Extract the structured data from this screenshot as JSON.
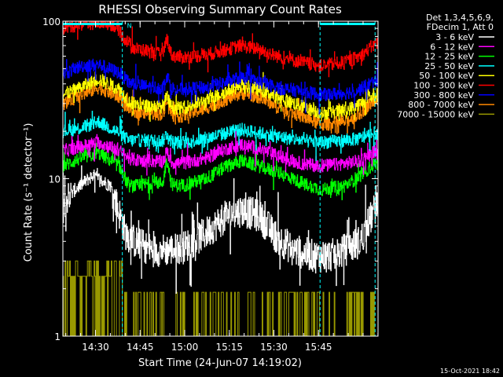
{
  "chart_data": {
    "type": "line",
    "title": "RHESSI Observing Summary Count Rates",
    "xlabel": "Start Time (24-Jun-07 14:19:02)",
    "ylabel": "Count Rate (s⁻¹ detector⁻¹)",
    "yscale": "log",
    "ylim": [
      1,
      100
    ],
    "xlim_minutes": [
      0,
      106
    ],
    "x_ticks": [
      {
        "label": "14:30",
        "minute": 10.97
      },
      {
        "label": "14:45",
        "minute": 25.97
      },
      {
        "label": "15:00",
        "minute": 40.97
      },
      {
        "label": "15:15",
        "minute": 55.97
      },
      {
        "label": "15:30",
        "minute": 70.97
      },
      {
        "label": "15:45",
        "minute": 85.97
      }
    ],
    "y_ticks": [
      {
        "label": "1",
        "value": 1
      },
      {
        "label": "10",
        "value": 10
      },
      {
        "label": "100",
        "value": 100
      }
    ],
    "legend_header": [
      "Det 1,3,4,5,6,9,",
      "FDecim 1, Att 0"
    ],
    "night_boundaries_minutes": [
      20,
      86.5,
      105
    ],
    "flag_bars": [
      {
        "start": 0,
        "end": 20,
        "value": 96,
        "marker": "N"
      },
      {
        "start": 86.5,
        "end": 105,
        "value": 96,
        "marker": ""
      }
    ],
    "series": [
      {
        "name": "3 - 6 keV",
        "color": "#ffffff",
        "anchors": [
          [
            0,
            7
          ],
          [
            4,
            8.5
          ],
          [
            10,
            10.5
          ],
          [
            16,
            9
          ],
          [
            19,
            6
          ],
          [
            21,
            4.5
          ],
          [
            24,
            4
          ],
          [
            30,
            3.5
          ],
          [
            40,
            3.6
          ],
          [
            48,
            4.5
          ],
          [
            55,
            5.8
          ],
          [
            60,
            6.3
          ],
          [
            66,
            5.8
          ],
          [
            72,
            4.2
          ],
          [
            78,
            3.5
          ],
          [
            85,
            3.2
          ],
          [
            92,
            3.3
          ],
          [
            100,
            4
          ],
          [
            105,
            6.5
          ]
        ],
        "peak": {
          "at": 35,
          "factor": 1.0
        }
      },
      {
        "name": "6 - 12 keV",
        "color": "#ff00ff",
        "anchors": [
          [
            0,
            15
          ],
          [
            6,
            16
          ],
          [
            12,
            17
          ],
          [
            19,
            15
          ],
          [
            22,
            13.5
          ],
          [
            26,
            13
          ],
          [
            30,
            13
          ],
          [
            40,
            12.5
          ],
          [
            48,
            13.5
          ],
          [
            55,
            15.5
          ],
          [
            60,
            16.5
          ],
          [
            66,
            15.5
          ],
          [
            72,
            14
          ],
          [
            80,
            12.5
          ],
          [
            87,
            12
          ],
          [
            95,
            12.5
          ],
          [
            100,
            13
          ],
          [
            105,
            15
          ]
        ],
        "peak": {
          "at": 35,
          "factor": 1.15
        }
      },
      {
        "name": "12 - 25 keV",
        "color": "#00ff00",
        "anchors": [
          [
            0,
            12
          ],
          [
            6,
            13.5
          ],
          [
            12,
            14.5
          ],
          [
            19,
            12
          ],
          [
            22,
            9
          ],
          [
            26,
            9
          ],
          [
            30,
            9.5
          ],
          [
            40,
            9
          ],
          [
            48,
            10
          ],
          [
            55,
            12
          ],
          [
            60,
            13
          ],
          [
            66,
            12
          ],
          [
            72,
            11
          ],
          [
            80,
            9.5
          ],
          [
            87,
            8.5
          ],
          [
            95,
            9
          ],
          [
            100,
            10.5
          ],
          [
            105,
            12.5
          ]
        ],
        "peak": {
          "at": 35,
          "factor": 1.4
        }
      },
      {
        "name": "25 - 50 keV",
        "color": "#00ffff",
        "anchors": [
          [
            0,
            20
          ],
          [
            6,
            21
          ],
          [
            12,
            23
          ],
          [
            19,
            19.5
          ],
          [
            22,
            17.5
          ],
          [
            26,
            17.5
          ],
          [
            30,
            17.5
          ],
          [
            40,
            17
          ],
          [
            48,
            18
          ],
          [
            55,
            19.5
          ],
          [
            60,
            20.5
          ],
          [
            66,
            19.5
          ],
          [
            72,
            18.5
          ],
          [
            80,
            17.5
          ],
          [
            87,
            17
          ],
          [
            95,
            17.5
          ],
          [
            100,
            18
          ],
          [
            105,
            19.5
          ]
        ],
        "peak": {
          "at": 35,
          "factor": 1.12
        }
      },
      {
        "name": "50 - 100 keV",
        "color": "#ffff00",
        "anchors": [
          [
            0,
            34
          ],
          [
            6,
            38
          ],
          [
            12,
            43
          ],
          [
            19,
            37
          ],
          [
            22,
            31
          ],
          [
            26,
            29
          ],
          [
            30,
            29
          ],
          [
            40,
            28
          ],
          [
            48,
            31
          ],
          [
            55,
            36
          ],
          [
            60,
            39
          ],
          [
            66,
            37
          ],
          [
            72,
            33
          ],
          [
            80,
            29
          ],
          [
            87,
            26
          ],
          [
            95,
            27
          ],
          [
            100,
            30
          ],
          [
            105,
            34
          ]
        ],
        "peak": {
          "at": 35,
          "factor": 1.15
        }
      },
      {
        "name": "100 - 300 keV",
        "color": "#ff0000",
        "anchors": [
          [
            0,
            90
          ],
          [
            6,
            96
          ],
          [
            12,
            98
          ],
          [
            17,
            95
          ],
          [
            20,
            80
          ],
          [
            24,
            67
          ],
          [
            28,
            65
          ],
          [
            32,
            62
          ],
          [
            34,
            62
          ],
          [
            40,
            59
          ],
          [
            48,
            61
          ],
          [
            55,
            66
          ],
          [
            60,
            70
          ],
          [
            66,
            66
          ],
          [
            72,
            60
          ],
          [
            80,
            55
          ],
          [
            87,
            52
          ],
          [
            95,
            55
          ],
          [
            100,
            60
          ],
          [
            105,
            72
          ]
        ],
        "peak": {
          "at": 35,
          "factor": 1.25
        }
      },
      {
        "name": "300 - 800 keV",
        "color": "#0000ff",
        "anchors": [
          [
            0,
            46
          ],
          [
            6,
            52
          ],
          [
            12,
            53
          ],
          [
            19,
            47
          ],
          [
            22,
            41
          ],
          [
            26,
            39
          ],
          [
            30,
            38
          ],
          [
            40,
            37
          ],
          [
            48,
            38
          ],
          [
            55,
            41
          ],
          [
            60,
            44
          ],
          [
            66,
            41
          ],
          [
            72,
            38
          ],
          [
            80,
            36
          ],
          [
            87,
            34
          ],
          [
            95,
            35
          ],
          [
            100,
            37
          ],
          [
            105,
            42
          ]
        ],
        "peak": {
          "at": 35,
          "factor": 1.2
        }
      },
      {
        "name": "800 - 7000 keV",
        "color": "#ff8800",
        "anchors": [
          [
            0,
            30
          ],
          [
            6,
            34
          ],
          [
            12,
            38
          ],
          [
            19,
            33
          ],
          [
            22,
            28
          ],
          [
            26,
            26
          ],
          [
            30,
            26
          ],
          [
            40,
            25
          ],
          [
            48,
            28
          ],
          [
            55,
            32
          ],
          [
            60,
            35
          ],
          [
            66,
            33
          ],
          [
            72,
            29
          ],
          [
            80,
            25
          ],
          [
            87,
            22
          ],
          [
            95,
            23
          ],
          [
            100,
            26
          ],
          [
            105,
            32
          ]
        ],
        "peak": {
          "at": 35,
          "factor": 1.28
        }
      },
      {
        "name": "7000 - 15000 keV",
        "color": "#999900",
        "anchors": [
          [
            0,
            2.3
          ],
          [
            5,
            2.5
          ],
          [
            10,
            2.6
          ],
          [
            15,
            2.4
          ],
          [
            20,
            1.9
          ],
          [
            106,
            1.8
          ]
        ],
        "peak": {
          "at": 35,
          "factor": 1.0
        },
        "sparse": true
      }
    ]
  },
  "timestamp": "15-Oct-2021 18:42"
}
